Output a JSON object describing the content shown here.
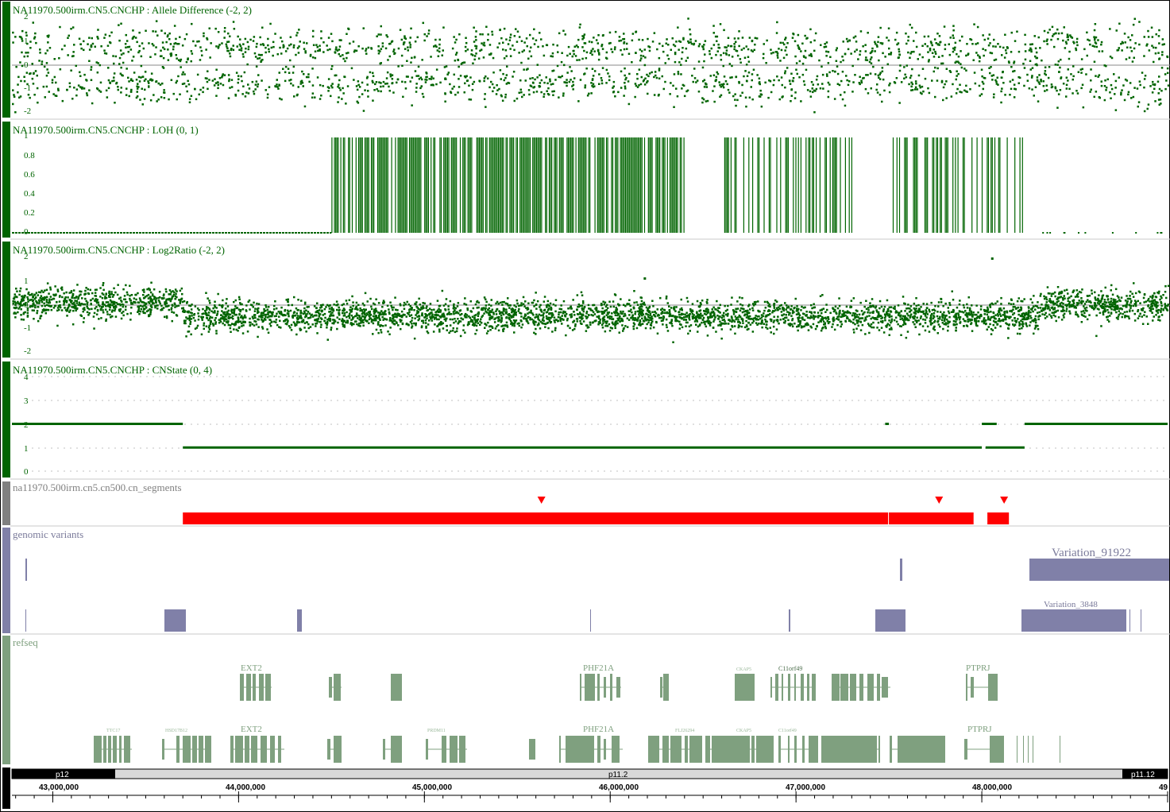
{
  "view": {
    "start": 42780000,
    "end": 49000000
  },
  "colors": {
    "green": "#006400",
    "segment_red": "#ff0000",
    "variant_purple": "#8080a8",
    "gene_green": "#7fa07f",
    "gray_handle": "#808080"
  },
  "tracks": {
    "allele_diff": {
      "title": "NA11970.500irm.CN5.CNCHP : Allele Difference (-2, 2)",
      "ticks": [
        "2",
        "1",
        "0",
        "-1",
        "-2"
      ]
    },
    "loh": {
      "title": "NA11970.500irm.CN5.CNCHP : LOH (0, 1)",
      "ticks": [
        "1",
        "0.8",
        "0.6",
        "0.4",
        "0.2",
        "0"
      ]
    },
    "log2ratio": {
      "title": "NA11970.500irm.CN5.CNCHP : Log2Ratio (-2, 2)",
      "ticks": [
        "2",
        "1",
        "0",
        "-1",
        "-2"
      ]
    },
    "cnstate": {
      "title": "NA11970.500irm.CN5.CNCHP : CNState (0, 4)",
      "ticks": [
        "4",
        "3",
        "2",
        "1",
        "0"
      ]
    },
    "segments": {
      "title": "na11970.500irm.cn5.cn500.cn_segments"
    },
    "variants": {
      "title": "genomic variants",
      "labels": [
        "Variation_91922",
        "Variation_3848"
      ]
    },
    "refseq": {
      "title": "refseq",
      "labels_big": [
        "EXT2",
        "PHF21A",
        "C11orf49",
        "PTPRJ"
      ],
      "labels_small": [
        "TTC17",
        "HSD17B12",
        "PRDM11",
        "FLJ26294",
        "CKAP5"
      ]
    }
  },
  "ideogram": {
    "bands": [
      "p12",
      "p11.2",
      "p11.12"
    ]
  },
  "ruler": {
    "labels": [
      "43,000,000",
      "44,000,000",
      "45,000,000",
      "46,000,000",
      "47,000,000",
      "48,000,000",
      "49"
    ]
  },
  "chart_data": [
    {
      "type": "scatter",
      "title": "NA11970.500irm.CN5.CNCHP : Allele Difference (-2, 2)",
      "ylim": [
        -2,
        2
      ],
      "x_range": [
        42780000,
        49000000
      ],
      "clusters": [
        {
          "x_from": 42780000,
          "x_to": 43700000,
          "y_values": [
            0.5,
            -0.5,
            0.8,
            -0.8,
            1.2,
            -1.2
          ]
        },
        {
          "x_from": 43700000,
          "x_to": 47300000,
          "y_values": [
            0.6,
            -0.6,
            1.0,
            -1.0
          ]
        },
        {
          "x_from": 47300000,
          "x_to": 48300000,
          "y_values": [
            0.5,
            -0.5,
            0.9,
            -0.9
          ]
        },
        {
          "x_from": 48300000,
          "x_to": 49000000,
          "y_values": [
            1.2,
            -1.2,
            0.6,
            -0.6
          ]
        }
      ]
    },
    {
      "type": "bar",
      "title": "NA11970.500irm.CN5.CNCHP : LOH (0, 1)",
      "ylim": [
        0,
        1
      ],
      "x_range": [
        42780000,
        49000000
      ],
      "regions_value_1": [
        [
          44500000,
          45300000
        ],
        [
          45300000,
          46400000
        ],
        [
          46600000,
          47300000
        ],
        [
          47500000,
          48100000
        ],
        [
          48100000,
          48220000
        ]
      ],
      "baseline_value": 0
    },
    {
      "type": "scatter",
      "title": "NA11970.500irm.CN5.CNCHP : Log2Ratio (-2, 2)",
      "ylim": [
        -2,
        2
      ],
      "x_range": [
        42780000,
        49000000
      ],
      "level_segments": [
        [
          42780000,
          43700000,
          0.1
        ],
        [
          43700000,
          48300000,
          -0.45
        ],
        [
          48300000,
          49000000,
          0.05
        ]
      ],
      "outliers": [
        [
          46180000,
          1.15
        ],
        [
          48050000,
          2.0
        ]
      ]
    },
    {
      "type": "line",
      "title": "NA11970.500irm.CN5.CNCHP : CNState (0, 4)",
      "ylim": [
        0,
        4
      ],
      "segments": [
        [
          42780000,
          43700000,
          2
        ],
        [
          43700000,
          48000000,
          1
        ],
        [
          48020000,
          48230000,
          1
        ],
        [
          48000000,
          48080000,
          2
        ],
        [
          48230000,
          49000000,
          2
        ],
        [
          47480000,
          47500000,
          2
        ]
      ]
    },
    {
      "type": "table",
      "title": "na11970.500irm.cn5.cn500.cn_segments",
      "segments": [
        [
          43700000,
          47500000
        ],
        [
          47500000,
          47960000
        ],
        [
          48030000,
          48150000
        ]
      ],
      "markers": [
        45630000,
        47770000,
        48120000
      ]
    }
  ]
}
